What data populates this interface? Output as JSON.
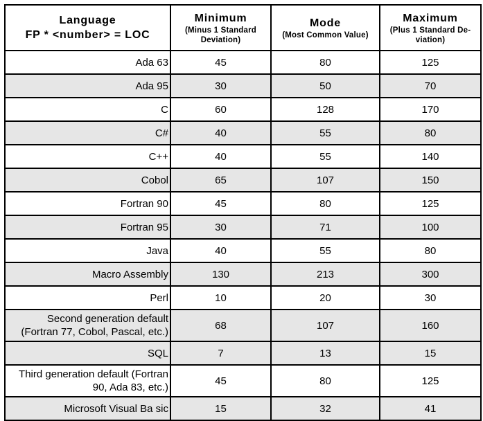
{
  "chart_data": {
    "type": "table",
    "header": {
      "language_title": "Language",
      "language_subtitle": "FP * <number> = LOC",
      "cols": [
        {
          "title": "Minimum",
          "subtitle": "(Minus 1 Standard Deviation)"
        },
        {
          "title": "Mode",
          "subtitle": "(Most Common Value)"
        },
        {
          "title": "Maximum",
          "subtitle": "(Plus 1 Standard De-viation)"
        }
      ]
    },
    "rows": [
      {
        "language": "Ada 63",
        "min": "45",
        "mode": "80",
        "max": "125",
        "shaded": false
      },
      {
        "language": "Ada 95",
        "min": "30",
        "mode": "50",
        "max": "70",
        "shaded": true
      },
      {
        "language": "C",
        "min": "60",
        "mode": "128",
        "max": "170",
        "shaded": false
      },
      {
        "language": "C#",
        "min": "40",
        "mode": "55",
        "max": "80",
        "shaded": true
      },
      {
        "language": "C++",
        "min": "40",
        "mode": "55",
        "max": "140",
        "shaded": false
      },
      {
        "language": "Cobol",
        "min": "65",
        "mode": "107",
        "max": "150",
        "shaded": true
      },
      {
        "language": "Fortran 90",
        "min": "45",
        "mode": "80",
        "max": "125",
        "shaded": false
      },
      {
        "language": "Fortran 95",
        "min": "30",
        "mode": "71",
        "max": "100",
        "shaded": true
      },
      {
        "language": "Java",
        "min": "40",
        "mode": "55",
        "max": "80",
        "shaded": false
      },
      {
        "language": "Macro Assembly",
        "min": "130",
        "mode": "213",
        "max": "300",
        "shaded": true
      },
      {
        "language": "Perl",
        "min": "10",
        "mode": "20",
        "max": "30",
        "shaded": false
      },
      {
        "language": "Second generation default (Fortran 77, Cobol, Pascal, etc.)",
        "min": "68",
        "mode": "107",
        "max": "160",
        "shaded": true
      },
      {
        "language": "SQL",
        "min": "7",
        "mode": "13",
        "max": "15",
        "shaded": true
      },
      {
        "language": "Third generation default (Fortran 90, Ada 83, etc.)",
        "min": "45",
        "mode": "80",
        "max": "125",
        "shaded": false
      },
      {
        "language": "Microsoft Visual Ba sic",
        "min": "15",
        "mode": "32",
        "max": "41",
        "shaded": true
      }
    ]
  },
  "colors": {
    "row_shade": "#e6e6e6",
    "border": "#000000",
    "background": "#ffffff"
  }
}
